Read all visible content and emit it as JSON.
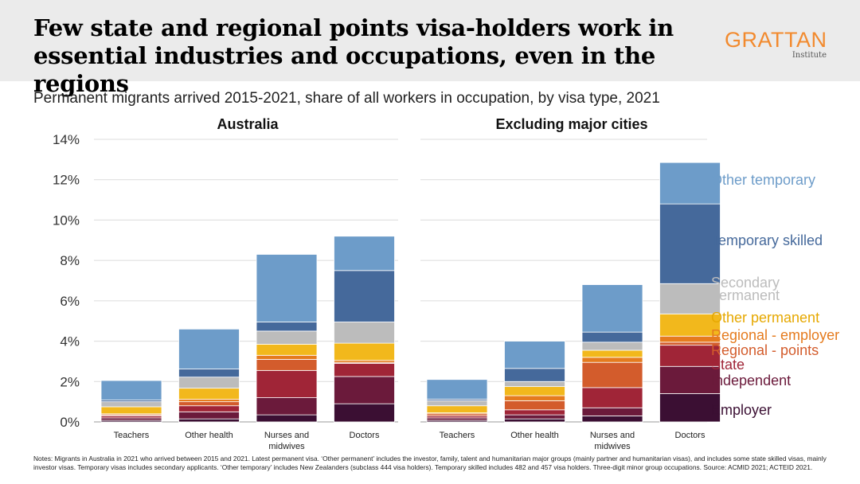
{
  "header": {
    "title": "Few state and regional points visa-holders work in essential industries and occupations, even in the regions",
    "logo_main": "GRATTAN",
    "logo_sub": "Institute"
  },
  "subtitle": "Permanent migrants arrived 2015-2021, share of all workers in occupation, by visa type, 2021",
  "notes": "Notes: Migrants in Australia in 2021 who arrived between 2015 and 2021. Latest permanent visa. ‘Other permanent’ includes the investor, family, talent and humanitarian major groups (mainly partner and humanitarian visas), and includes some state skilled visas, mainly investor visas. Temporary visas includes secondary applicants. ‘Other temporary’ includes New Zealanders (subclass 444 visa holders). Temporary skilled includes 482 and 457 visa holders. Three-digit minor group occupations. Source: ACMID 2021; ACTEID 2021.",
  "chart_data": [
    {
      "type": "bar",
      "stacked": true,
      "title": "Australia",
      "categories": [
        "Teachers",
        "Other health",
        "Nurses and midwives",
        "Doctors"
      ],
      "ylim": [
        0,
        14
      ],
      "yticks": [
        "0%",
        "2%",
        "4%",
        "6%",
        "8%",
        "10%",
        "12%",
        "14%"
      ],
      "grid": true,
      "series": [
        {
          "name": "Employer",
          "color": "#3b0f33",
          "values": [
            0.08,
            0.15,
            0.35,
            0.9
          ]
        },
        {
          "name": "Independent",
          "color": "#6b1a3b",
          "values": [
            0.12,
            0.35,
            0.85,
            1.35
          ]
        },
        {
          "name": "State",
          "color": "#a02537",
          "values": [
            0.1,
            0.3,
            1.35,
            0.65
          ]
        },
        {
          "name": "Regional - points",
          "color": "#d35c2c",
          "values": [
            0.05,
            0.2,
            0.55,
            0.05
          ]
        },
        {
          "name": "Regional - employer",
          "color": "#e57b1e",
          "values": [
            0.05,
            0.12,
            0.2,
            0.1
          ]
        },
        {
          "name": "Other permanent",
          "color": "#f2b81c",
          "values": [
            0.35,
            0.55,
            0.55,
            0.85
          ]
        },
        {
          "name": "Secondary permanent",
          "color": "#bcbcbc",
          "values": [
            0.25,
            0.55,
            0.65,
            1.05
          ]
        },
        {
          "name": "Temporary skilled",
          "color": "#45699b",
          "values": [
            0.08,
            0.4,
            0.45,
            2.55
          ]
        },
        {
          "name": "Other temporary",
          "color": "#6d9cc9",
          "values": [
            0.97,
            1.98,
            3.35,
            1.7
          ]
        }
      ]
    },
    {
      "type": "bar",
      "stacked": true,
      "title": "Excluding major cities",
      "categories": [
        "Teachers",
        "Other health",
        "Nurses and midwives",
        "Doctors"
      ],
      "ylim": [
        0,
        14
      ],
      "grid": true,
      "legend": "right",
      "series": [
        {
          "name": "Employer",
          "color": "#3b0f33",
          "values": [
            0.08,
            0.15,
            0.3,
            1.4
          ]
        },
        {
          "name": "Independent",
          "color": "#6b1a3b",
          "values": [
            0.12,
            0.2,
            0.4,
            1.35
          ]
        },
        {
          "name": "State",
          "color": "#a02537",
          "values": [
            0.1,
            0.25,
            1.0,
            1.05
          ]
        },
        {
          "name": "Regional - points",
          "color": "#d35c2c",
          "values": [
            0.1,
            0.45,
            1.25,
            0.15
          ]
        },
        {
          "name": "Regional - employer",
          "color": "#e57b1e",
          "values": [
            0.05,
            0.25,
            0.25,
            0.3
          ]
        },
        {
          "name": "Other permanent",
          "color": "#f2b81c",
          "values": [
            0.35,
            0.45,
            0.35,
            1.1
          ]
        },
        {
          "name": "Secondary permanent",
          "color": "#bcbcbc",
          "values": [
            0.25,
            0.25,
            0.4,
            1.5
          ]
        },
        {
          "name": "Temporary skilled",
          "color": "#45699b",
          "values": [
            0.08,
            0.65,
            0.5,
            3.95
          ]
        },
        {
          "name": "Other temporary",
          "color": "#6d9cc9",
          "values": [
            0.97,
            1.35,
            2.35,
            2.05
          ]
        }
      ],
      "legend_labels": [
        {
          "name": "Other temporary",
          "lines": [
            "Other temporary"
          ],
          "color": "#6d9cc9"
        },
        {
          "name": "Temporary skilled",
          "lines": [
            "Temporary skilled"
          ],
          "color": "#45699b"
        },
        {
          "name": "Secondary permanent",
          "lines": [
            "Secondary",
            "permanent"
          ],
          "color": "#bcbcbc"
        },
        {
          "name": "Other permanent",
          "lines": [
            "Other permanent"
          ],
          "color": "#e6a800"
        },
        {
          "name": "Regional - employer",
          "lines": [
            "Regional - employer"
          ],
          "color": "#e57b1e"
        },
        {
          "name": "Regional - points",
          "lines": [
            "Regional - points"
          ],
          "color": "#d35c2c"
        },
        {
          "name": "State",
          "lines": [
            "State"
          ],
          "color": "#a02537"
        },
        {
          "name": "Independent",
          "lines": [
            "Independent"
          ],
          "color": "#6b1a3b"
        },
        {
          "name": "Employer",
          "lines": [
            "Employer"
          ],
          "color": "#3b0f33"
        }
      ]
    }
  ]
}
